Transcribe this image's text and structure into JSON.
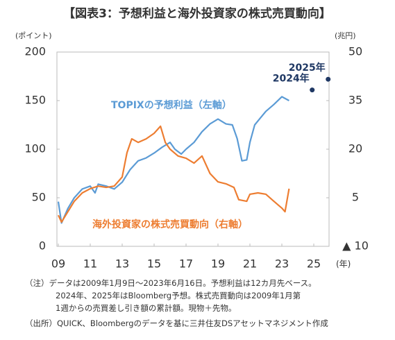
{
  "chart_data": {
    "type": "line",
    "title": "【図表3：予想利益と海外投資家の株式売買動向】",
    "y_label": "(ポイント)",
    "y2_label": "(兆円)",
    "x_label": "(年)",
    "xlim": [
      2009,
      2026
    ],
    "xticks": [
      {
        "value": 2009,
        "label": "09"
      },
      {
        "value": 2011,
        "label": "11"
      },
      {
        "value": 2013,
        "label": "13"
      },
      {
        "value": 2015,
        "label": "15"
      },
      {
        "value": 2017,
        "label": "17"
      },
      {
        "value": 2019,
        "label": "19"
      },
      {
        "value": 2021,
        "label": "21"
      },
      {
        "value": 2023,
        "label": "23"
      },
      {
        "value": 2025,
        "label": "25"
      }
    ],
    "ylim": [
      0,
      200
    ],
    "yticks": [
      0,
      50,
      100,
      150,
      200
    ],
    "y2lim": [
      -10,
      50
    ],
    "y2ticks": [
      {
        "value": -10,
        "label": "▲ 10"
      },
      5,
      20,
      35,
      50
    ],
    "series": [
      {
        "name": "TOPIXの予想利益（左軸）",
        "color": "#5b9bd5",
        "x": [
          2009.0,
          2009.2,
          2009.6,
          2010.0,
          2010.5,
          2011.0,
          2011.3,
          2011.5,
          2012.0,
          2012.5,
          2013.0,
          2013.5,
          2014.0,
          2014.5,
          2015.0,
          2015.5,
          2016.0,
          2016.3,
          2016.7,
          2017.0,
          2017.5,
          2018.0,
          2018.5,
          2019.0,
          2019.5,
          2019.9,
          2020.2,
          2020.5,
          2020.8,
          2021.0,
          2021.3,
          2021.6,
          2022.0,
          2022.5,
          2023.0,
          2023.45
        ],
        "values": [
          46,
          24,
          39,
          50,
          59,
          62,
          55,
          64,
          62,
          59,
          66,
          79,
          88,
          91,
          96,
          102,
          107,
          100,
          95,
          100,
          107,
          118,
          126,
          131,
          126,
          125,
          111,
          88,
          89,
          107,
          125,
          131,
          139,
          146,
          154,
          150
        ]
      },
      {
        "name": "海外投資家の株式売買動向（右軸）",
        "color": "#ed7d31",
        "axis": "y2",
        "x": [
          2009.0,
          2009.2,
          2009.6,
          2010.0,
          2010.5,
          2011.0,
          2011.5,
          2012.0,
          2012.5,
          2013.0,
          2013.3,
          2013.6,
          2014.0,
          2014.5,
          2015.0,
          2015.4,
          2015.7,
          2016.0,
          2016.5,
          2017.0,
          2017.5,
          2018.0,
          2018.5,
          2019.0,
          2019.5,
          2020.0,
          2020.3,
          2020.8,
          2021.0,
          2021.5,
          2022.0,
          2022.5,
          2023.0,
          2023.2,
          2023.45
        ],
        "values": [
          -0.4,
          -2.5,
          0.7,
          3.9,
          6.5,
          7.8,
          8.6,
          8.2,
          8.6,
          11.4,
          18.9,
          23.2,
          22.1,
          23.2,
          24.9,
          27.1,
          22.1,
          20.0,
          17.9,
          17.2,
          15.7,
          17.9,
          12.5,
          9.9,
          9.3,
          8.2,
          4.4,
          3.9,
          6.1,
          6.5,
          6.1,
          3.9,
          1.8,
          0.7,
          7.8
        ]
      }
    ],
    "forecast": {
      "color": "#1f3864",
      "x": [
        2024.9,
        2025.9
      ],
      "values": [
        161,
        172
      ],
      "labels": [
        "2024年",
        "2025年"
      ]
    },
    "notes": [
      "（注）データは2009年1月9日～2023年6月16日。予想利益は12カ月先ベース。",
      "2024年、2025年はBloomberg予想。株式売買動向は2009年1月第",
      "1週からの売買差し引き額の累計額。現物＋先物。",
      "（出所）QUICK、Bloombergのデータを基に三井住友DSアセットマネジメント作成"
    ]
  }
}
